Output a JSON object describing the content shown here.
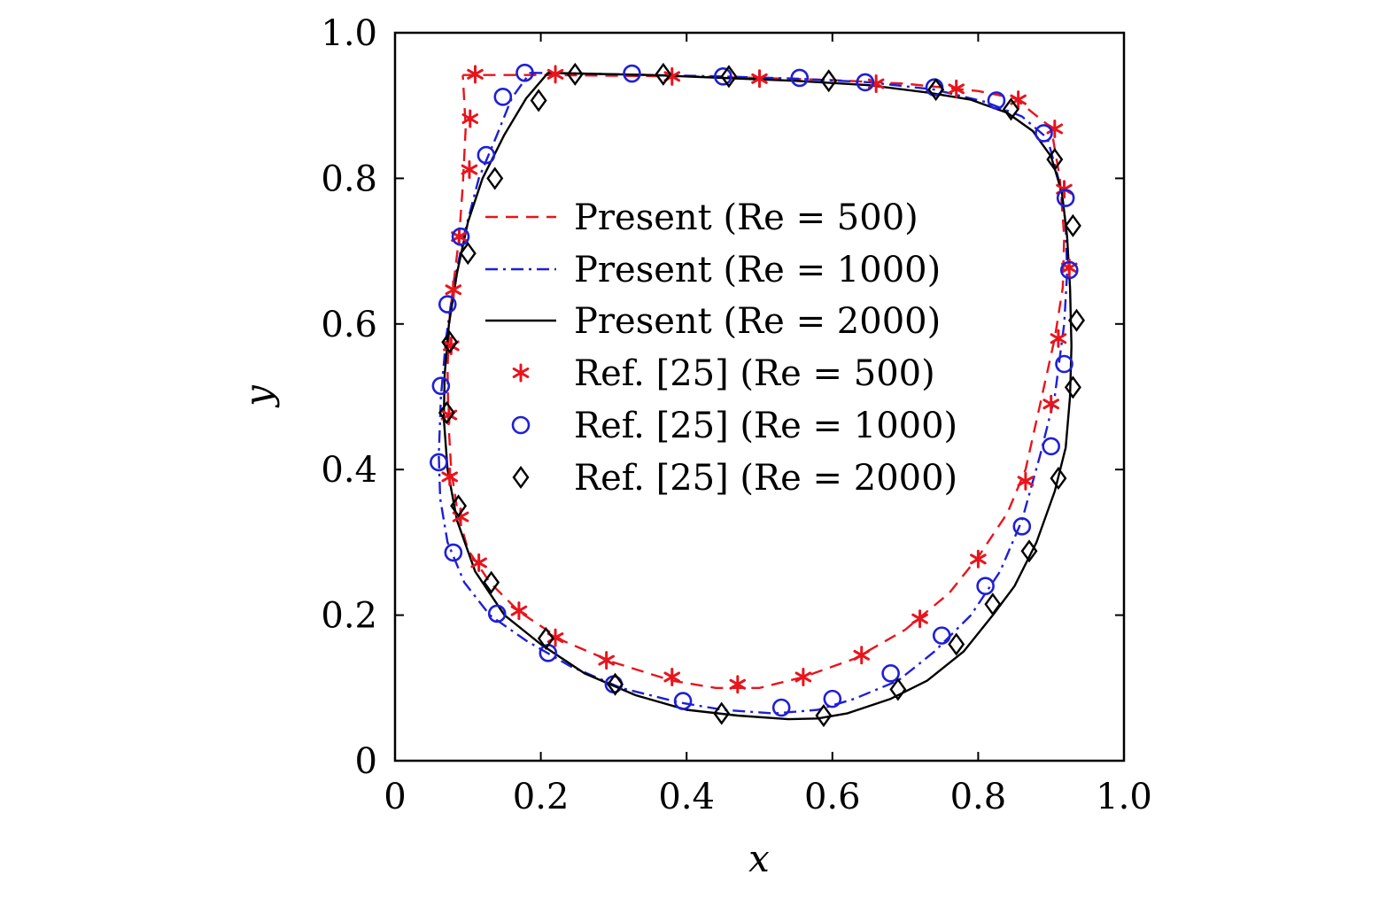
{
  "chart_data": {
    "type": "line",
    "xlabel": "x",
    "ylabel": "y",
    "xlim": [
      0,
      1
    ],
    "ylim": [
      0,
      1
    ],
    "x_ticks": [
      0,
      0.2,
      0.4,
      0.6,
      0.8,
      1.0
    ],
    "y_ticks": [
      0,
      0.2,
      0.4,
      0.6,
      0.8,
      1.0
    ],
    "x_tick_labels": [
      "0",
      "0.2",
      "0.4",
      "0.6",
      "0.8",
      "1.0"
    ],
    "y_tick_labels": [
      "0",
      "0.2",
      "0.4",
      "0.6",
      "0.8",
      "1.0"
    ],
    "grid": false,
    "legend_position": "center",
    "series": [
      {
        "name": "Present (Re = 500)",
        "kind": "line",
        "style": "dashed",
        "color": "#e8141c",
        "x": [
          0.093,
          0.12,
          0.2,
          0.3,
          0.4,
          0.5,
          0.6,
          0.7,
          0.8,
          0.85,
          0.9,
          0.912,
          0.918,
          0.916,
          0.905,
          0.885,
          0.865,
          0.84,
          0.8,
          0.76,
          0.7,
          0.63,
          0.56,
          0.5,
          0.44,
          0.38,
          0.3,
          0.23,
          0.17,
          0.13,
          0.1,
          0.086,
          0.077,
          0.073,
          0.072,
          0.075,
          0.082,
          0.088,
          0.093,
          0.097,
          0.093
        ],
        "y": [
          0.942,
          0.942,
          0.942,
          0.941,
          0.94,
          0.938,
          0.935,
          0.93,
          0.92,
          0.91,
          0.87,
          0.8,
          0.72,
          0.65,
          0.58,
          0.49,
          0.4,
          0.34,
          0.28,
          0.23,
          0.18,
          0.14,
          0.115,
          0.1,
          0.1,
          0.11,
          0.135,
          0.165,
          0.205,
          0.245,
          0.29,
          0.34,
          0.4,
          0.47,
          0.54,
          0.61,
          0.67,
          0.72,
          0.79,
          0.87,
          0.942
        ]
      },
      {
        "name": "Present (Re = 1000)",
        "kind": "line",
        "style": "dashdot",
        "color": "#1f1fd6",
        "x": [
          0.185,
          0.25,
          0.35,
          0.45,
          0.55,
          0.65,
          0.74,
          0.81,
          0.86,
          0.895,
          0.91,
          0.92,
          0.922,
          0.918,
          0.905,
          0.885,
          0.86,
          0.83,
          0.79,
          0.74,
          0.69,
          0.63,
          0.58,
          0.52,
          0.45,
          0.39,
          0.31,
          0.24,
          0.18,
          0.13,
          0.095,
          0.072,
          0.062,
          0.06,
          0.063,
          0.07,
          0.08,
          0.094,
          0.115,
          0.14,
          0.16,
          0.185
        ],
        "y": [
          0.945,
          0.944,
          0.942,
          0.94,
          0.937,
          0.932,
          0.922,
          0.905,
          0.885,
          0.855,
          0.8,
          0.74,
          0.67,
          0.6,
          0.5,
          0.42,
          0.33,
          0.26,
          0.2,
          0.15,
          0.11,
          0.085,
          0.07,
          0.065,
          0.07,
          0.08,
          0.1,
          0.13,
          0.165,
          0.2,
          0.245,
          0.3,
          0.36,
          0.42,
          0.5,
          0.58,
          0.65,
          0.72,
          0.8,
          0.86,
          0.91,
          0.945
        ]
      },
      {
        "name": "Present (Re = 2000)",
        "kind": "line",
        "style": "solid",
        "color": "#000000",
        "x": [
          0.21,
          0.25,
          0.35,
          0.45,
          0.55,
          0.65,
          0.73,
          0.79,
          0.84,
          0.875,
          0.9,
          0.915,
          0.922,
          0.926,
          0.928,
          0.926,
          0.92,
          0.905,
          0.88,
          0.85,
          0.82,
          0.78,
          0.73,
          0.68,
          0.62,
          0.58,
          0.54,
          0.47,
          0.4,
          0.33,
          0.26,
          0.2,
          0.15,
          0.11,
          0.085,
          0.072,
          0.067,
          0.068,
          0.074,
          0.085,
          0.1,
          0.12,
          0.15,
          0.18,
          0.21
        ],
        "y": [
          0.945,
          0.944,
          0.942,
          0.938,
          0.934,
          0.928,
          0.918,
          0.908,
          0.89,
          0.865,
          0.83,
          0.78,
          0.72,
          0.65,
          0.57,
          0.5,
          0.43,
          0.37,
          0.3,
          0.24,
          0.2,
          0.15,
          0.11,
          0.085,
          0.065,
          0.058,
          0.057,
          0.062,
          0.07,
          0.09,
          0.12,
          0.16,
          0.2,
          0.26,
          0.33,
          0.4,
          0.47,
          0.53,
          0.6,
          0.67,
          0.74,
          0.8,
          0.86,
          0.91,
          0.945
        ]
      },
      {
        "name": "Ref. [25] (Re = 500)",
        "kind": "marker",
        "marker": "asterisk",
        "color": "#e8141c",
        "x": [
          0.11,
          0.22,
          0.38,
          0.5,
          0.66,
          0.77,
          0.855,
          0.905,
          0.918,
          0.925,
          0.91,
          0.9,
          0.865,
          0.8,
          0.72,
          0.64,
          0.56,
          0.47,
          0.38,
          0.29,
          0.22,
          0.17,
          0.115,
          0.09,
          0.075,
          0.074,
          0.077,
          0.08,
          0.088,
          0.102,
          0.103
        ],
        "y": [
          0.943,
          0.943,
          0.94,
          0.937,
          0.93,
          0.923,
          0.908,
          0.868,
          0.785,
          0.677,
          0.58,
          0.49,
          0.384,
          0.277,
          0.195,
          0.145,
          0.115,
          0.105,
          0.115,
          0.138,
          0.169,
          0.206,
          0.272,
          0.335,
          0.39,
          0.475,
          0.57,
          0.647,
          0.72,
          0.812,
          0.882
        ]
      },
      {
        "name": "Ref. [25] (Re = 1000)",
        "kind": "marker",
        "marker": "circle",
        "color": "#1f1fd6",
        "x": [
          0.178,
          0.325,
          0.45,
          0.555,
          0.645,
          0.74,
          0.825,
          0.89,
          0.92,
          0.925,
          0.918,
          0.9,
          0.86,
          0.81,
          0.75,
          0.68,
          0.6,
          0.53,
          0.395,
          0.3,
          0.21,
          0.14,
          0.08,
          0.06,
          0.063,
          0.072,
          0.09,
          0.125,
          0.148
        ],
        "y": [
          0.945,
          0.944,
          0.94,
          0.938,
          0.932,
          0.925,
          0.907,
          0.862,
          0.773,
          0.674,
          0.545,
          0.432,
          0.322,
          0.24,
          0.172,
          0.12,
          0.085,
          0.073,
          0.082,
          0.105,
          0.148,
          0.202,
          0.286,
          0.41,
          0.515,
          0.627,
          0.72,
          0.832,
          0.912
        ]
      },
      {
        "name": "Ref. [25] (Re = 2000)",
        "kind": "marker",
        "marker": "diamond",
        "color": "#000000",
        "x": [
          0.247,
          0.368,
          0.458,
          0.595,
          0.742,
          0.845,
          0.905,
          0.93,
          0.935,
          0.93,
          0.91,
          0.87,
          0.82,
          0.77,
          0.69,
          0.588,
          0.448,
          0.302,
          0.207,
          0.132,
          0.087,
          0.071,
          0.075,
          0.1,
          0.137,
          0.197
        ],
        "y": [
          0.943,
          0.943,
          0.94,
          0.934,
          0.922,
          0.895,
          0.826,
          0.735,
          0.605,
          0.513,
          0.388,
          0.288,
          0.215,
          0.16,
          0.098,
          0.062,
          0.065,
          0.105,
          0.168,
          0.245,
          0.35,
          0.478,
          0.575,
          0.697,
          0.8,
          0.907
        ]
      }
    ],
    "legend": [
      {
        "label": "Present (Re = 500)",
        "color": "#e8141c",
        "line": "dashed"
      },
      {
        "label": "Present (Re = 1000)",
        "color": "#1f1fd6",
        "line": "dashdot"
      },
      {
        "label": "Present (Re = 2000)",
        "color": "#000000",
        "line": "solid"
      },
      {
        "label": "Ref. [25] (Re = 500)",
        "color": "#e8141c",
        "marker": "asterisk"
      },
      {
        "label": "Ref. [25] (Re = 1000)",
        "color": "#1f1fd6",
        "marker": "circle"
      },
      {
        "label": "Ref. [25] (Re = 2000)",
        "color": "#000000",
        "marker": "diamond"
      }
    ]
  }
}
